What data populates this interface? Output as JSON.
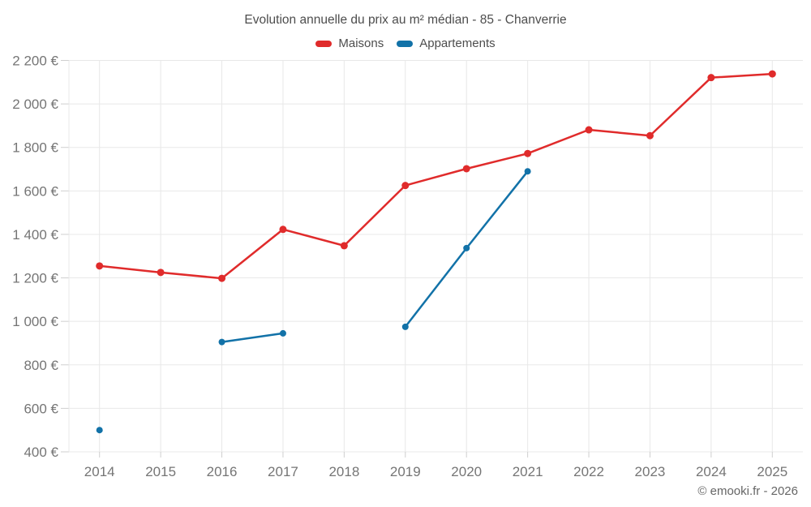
{
  "title": "Evolution annuelle du prix au m² médian - 85 - Chanverrie",
  "attribution": "© emooki.fr - 2026",
  "legend": {
    "items": [
      {
        "label": "Maisons",
        "color": "#e02b2b"
      },
      {
        "label": "Appartements",
        "color": "#1272a8"
      }
    ]
  },
  "chart_data": {
    "type": "line",
    "title": "Evolution annuelle du prix au m² médian - 85 - Chanverrie",
    "categories": [
      "2014",
      "2015",
      "2016",
      "2017",
      "2018",
      "2019",
      "2020",
      "2021",
      "2022",
      "2023",
      "2024",
      "2025"
    ],
    "series": [
      {
        "name": "Maisons",
        "color": "#e02b2b",
        "values": [
          1255,
          1225,
          1198,
          1423,
          1348,
          1625,
          1702,
          1772,
          1881,
          1854,
          2121,
          2138
        ]
      },
      {
        "name": "Appartements",
        "color": "#1272a8",
        "values": [
          500,
          null,
          905,
          945,
          null,
          975,
          1337,
          1690,
          null,
          null,
          null,
          null
        ]
      }
    ],
    "xlabel": "",
    "ylabel": "",
    "y_ticks": [
      400,
      600,
      800,
      1000,
      1200,
      1400,
      1600,
      1800,
      2000,
      2200
    ],
    "y_tick_labels": [
      "400 €",
      "600 €",
      "800 €",
      "1 000 €",
      "1 200 €",
      "1 400 €",
      "1 600 €",
      "1 800 €",
      "2 000 €",
      "2 200 €"
    ],
    "ylim": [
      400,
      2200
    ],
    "grid": true,
    "legend_position": "top",
    "colors": {
      "gridline": "#e8e8e8",
      "tick": "#cfcfcf",
      "axis_label": "#757575",
      "title": "#4d4d4d"
    }
  }
}
